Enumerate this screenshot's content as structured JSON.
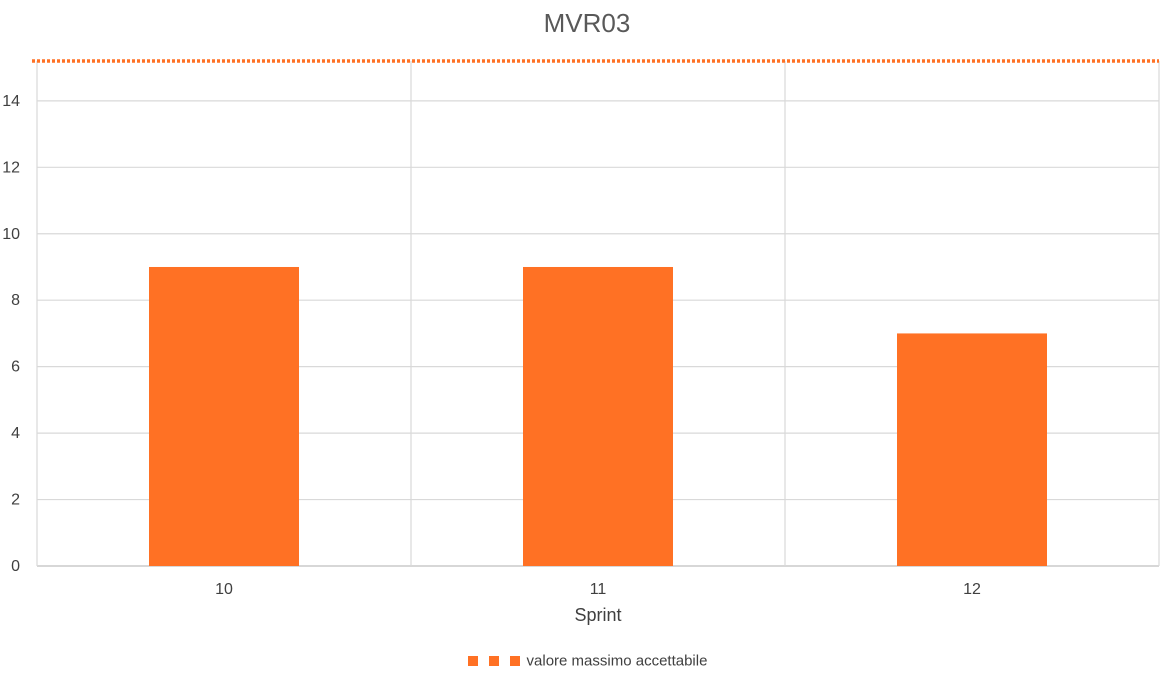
{
  "chart_data": {
    "type": "bar",
    "title": "MVR03",
    "xlabel": "Sprint",
    "ylabel": "",
    "categories": [
      "10",
      "11",
      "12"
    ],
    "series": [
      {
        "values": [
          9,
          9,
          7
        ],
        "color": "#FF7124"
      }
    ],
    "reference_line": {
      "name": "valore massimo accettabile",
      "value": 15.2,
      "style": "dotted",
      "color": "#FF7124"
    },
    "ylim": [
      0,
      15.2
    ],
    "yticks": [
      0,
      2,
      4,
      6,
      8,
      10,
      12,
      14
    ],
    "grid": true,
    "legend_position": "bottom"
  }
}
